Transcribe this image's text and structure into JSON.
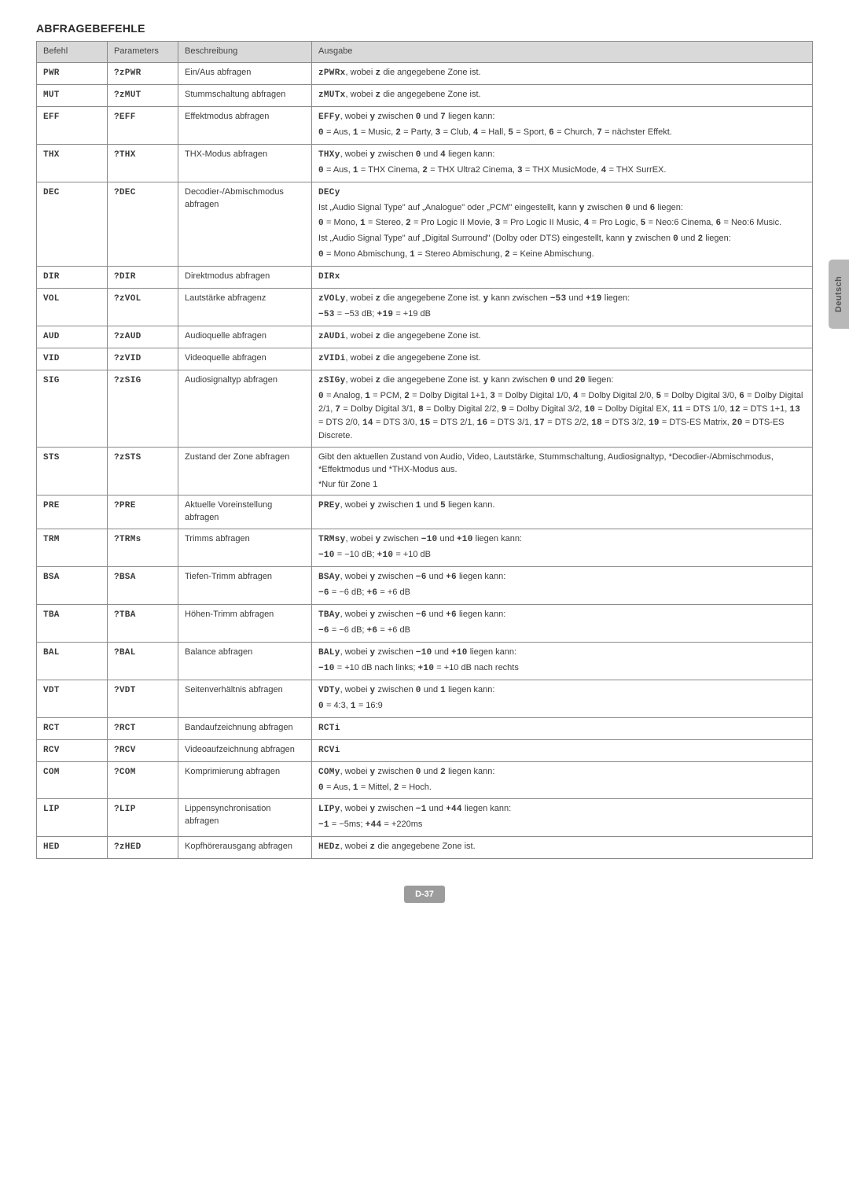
{
  "heading": "ABFRAGEBEFEHLE",
  "side_tab": "Deutsch",
  "page_number": "D-37",
  "columns": {
    "befehl": "Befehl",
    "parameters": "Parameters",
    "besch": "Beschreibung",
    "ausgabe": "Ausgabe"
  },
  "rows": [
    {
      "befehl": "PWR",
      "param": "?zPWR",
      "besch": "Ein/Aus abfragen",
      "ausgabe": [
        "<span class='mono'>zPWRx</span>, wobei <span class='mono'>z</span> die angegebene Zone ist."
      ]
    },
    {
      "befehl": "MUT",
      "param": "?zMUT",
      "besch": "Stummschaltung abfragen",
      "ausgabe": [
        "<span class='mono'>zMUTx</span>, wobei <span class='mono'>z</span> die angegebene Zone ist."
      ]
    },
    {
      "befehl": "EFF",
      "param": "?EFF",
      "besch": "Effektmodus abfragen",
      "ausgabe": [
        "<span class='mono'>EFFy</span>, wobei <span class='mono'>y</span> zwischen <span class='mono'>0</span> und <span class='mono'>7</span> liegen kann:",
        "<span class='mono'>0</span> = Aus, <span class='mono'>1</span> = Music, <span class='mono'>2</span> = Party, <span class='mono'>3</span> = Club, <span class='mono'>4</span> = Hall, <span class='mono'>5</span> = Sport, <span class='mono'>6</span> = Church, <span class='mono'>7</span> = nächster Effekt."
      ]
    },
    {
      "befehl": "THX",
      "param": "?THX",
      "besch": "THX-Modus abfragen",
      "ausgabe": [
        "<span class='mono'>THXy</span>, wobei <span class='mono'>y</span> zwischen <span class='mono'>0</span> und <span class='mono'>4</span> liegen kann:",
        "<span class='mono'>0</span> = Aus, <span class='mono'>1</span> = THX Cinema, <span class='mono'>2</span> = THX Ultra2 Cinema, <span class='mono'>3</span> = THX MusicMode, <span class='mono'>4</span> = THX SurrEX."
      ]
    },
    {
      "befehl": "DEC",
      "param": "?DEC",
      "besch": "Decodier-/Abmischmodus abfragen",
      "ausgabe": [
        "<span class='mono'>DECy</span>",
        "Ist „Audio Signal Type\" auf „Analogue\" oder „PCM\" eingestellt, kann <span class='mono'>y</span> zwischen <span class='mono'>0</span> und <span class='mono'>6</span> liegen:",
        "<span class='mono'>0</span> = Mono, <span class='mono'>1</span> = Stereo, <span class='mono'>2</span> = Pro Logic II Movie, <span class='mono'>3</span> = Pro Logic II Music, <span class='mono'>4</span> = Pro Logic, <span class='mono'>5</span> = Neo:6 Cinema, <span class='mono'>6</span> = Neo:6 Music.",
        "Ist „Audio Signal Type\" auf „Digital Surround\" (Dolby oder DTS) eingestellt, kann <span class='mono'>y</span> zwischen <span class='mono'>0</span> und <span class='mono'>2</span> liegen:",
        "<span class='mono'>0</span> = Mono Abmischung, <span class='mono'>1</span> = Stereo Abmischung, <span class='mono'>2</span> = Keine Abmischung."
      ]
    },
    {
      "befehl": "DIR",
      "param": "?DIR",
      "besch": "Direktmodus abfragen",
      "ausgabe": [
        "<span class='mono'>DIRx</span>"
      ]
    },
    {
      "befehl": "VOL",
      "param": "?zVOL",
      "besch": "Lautstärke abfragenz",
      "ausgabe": [
        "<span class='mono'>zVOLy</span>, wobei <span class='mono'>z</span> die angegebene Zone ist. <span class='mono'>y</span> kann zwischen <span class='mono'>−53</span> und <span class='mono'>+19</span> liegen:",
        "<span class='mono'>−53</span> = −53 dB; <span class='mono'>+19</span> = +19 dB"
      ]
    },
    {
      "befehl": "AUD",
      "param": "?zAUD",
      "besch": "Audioquelle abfragen",
      "ausgabe": [
        "<span class='mono'>zAUDi</span>, wobei <span class='mono'>z</span> die angegebene Zone ist."
      ]
    },
    {
      "befehl": "VID",
      "param": "?zVID",
      "besch": "Videoquelle abfragen",
      "ausgabe": [
        "<span class='mono'>zVIDi</span>, wobei <span class='mono'>z</span> die angegebene Zone ist."
      ]
    },
    {
      "befehl": "SIG",
      "param": "?zSIG",
      "besch": "Audiosignaltyp abfragen",
      "ausgabe": [
        "<span class='mono'>zSIGy</span>, wobei <span class='mono'>z</span> die angegebene Zone ist. <span class='mono'>y</span> kann zwischen <span class='mono'>0</span> und <span class='mono'>20</span> liegen:",
        "<span class='mono'>0</span> = Analog, <span class='mono'>1</span> = PCM, <span class='mono'>2</span> = Dolby Digital 1+1, <span class='mono'>3</span> = Dolby Digital 1/0, <span class='mono'>4</span> = Dolby Digital 2/0, <span class='mono'>5</span> = Dolby Digital 3/0, <span class='mono'>6</span> = Dolby Digital 2/1, <span class='mono'>7</span> = Dolby Digital 3/1, <span class='mono'>8</span> = Dolby Digital 2/2, <span class='mono'>9</span> = Dolby Digital 3/2, <span class='mono'>10</span> = Dolby Digital EX, <span class='mono'>11</span> = DTS 1/0, <span class='mono'>12</span> = DTS 1+1, <span class='mono'>13</span> = DTS 2/0, <span class='mono'>14</span> = DTS 3/0, <span class='mono'>15</span> = DTS 2/1, <span class='mono'>16</span> = DTS 3/1, <span class='mono'>17</span> = DTS 2/2, <span class='mono'>18</span> = DTS 3/2, <span class='mono'>19</span> = DTS-ES Matrix, <span class='mono'>20</span> = DTS-ES Discrete."
      ]
    },
    {
      "befehl": "STS",
      "param": "?zSTS",
      "besch": "Zustand der Zone abfragen",
      "ausgabe": [
        "Gibt den aktuellen Zustand von Audio, Video, Lautstärke, Stummschaltung, Audiosignaltyp, *Decodier-/Abmischmodus, *Effektmodus und *THX-Modus aus.",
        "*Nur für Zone 1"
      ]
    },
    {
      "befehl": "PRE",
      "param": "?PRE",
      "besch": "Aktuelle Voreinstellung abfragen",
      "ausgabe": [
        "<span class='mono'>PREy</span>, wobei <span class='mono'>y</span> zwischen <span class='mono'>1</span> und <span class='mono'>5</span> liegen kann."
      ]
    },
    {
      "befehl": "TRM",
      "param": "?TRMs",
      "besch": "Trimms abfragen",
      "ausgabe": [
        "<span class='mono'>TRMsy</span>, wobei <span class='mono'>y</span> zwischen <span class='mono'>−10</span> und <span class='mono'>+10</span> liegen kann:",
        "<span class='mono'>−10</span> = −10 dB; <span class='mono'>+10</span> = +10 dB"
      ]
    },
    {
      "befehl": "BSA",
      "param": "?BSA",
      "besch": "Tiefen-Trimm abfragen",
      "ausgabe": [
        "<span class='mono'>BSAy</span>, wobei <span class='mono'>y</span> zwischen <span class='mono'>−6</span> und <span class='mono'>+6</span> liegen kann:",
        "<span class='mono'>−6</span> = −6 dB; <span class='mono'>+6</span> = +6 dB"
      ]
    },
    {
      "befehl": "TBA",
      "param": "?TBA",
      "besch": "Höhen-Trimm abfragen",
      "ausgabe": [
        "<span class='mono'>TBAy</span>, wobei <span class='mono'>y</span> zwischen <span class='mono'>−6</span> und <span class='mono'>+6</span> liegen kann:",
        "<span class='mono'>−6</span> = −6 dB; <span class='mono'>+6</span> = +6 dB"
      ]
    },
    {
      "befehl": "BAL",
      "param": "?BAL",
      "besch": "Balance abfragen",
      "ausgabe": [
        "<span class='mono'>BALy</span>, wobei <span class='mono'>y</span> zwischen <span class='mono'>−10</span> und <span class='mono'>+10</span> liegen kann:",
        "<span class='mono'>−10</span> = +10 dB nach links; <span class='mono'>+10</span> = +10 dB nach rechts"
      ]
    },
    {
      "befehl": "VDT",
      "param": "?VDT",
      "besch": "Seitenverhältnis abfragen",
      "ausgabe": [
        "<span class='mono'>VDTy</span>, wobei <span class='mono'>y</span> zwischen <span class='mono'>0</span> und <span class='mono'>1</span> liegen kann:",
        "<span class='mono'>0</span> = 4:3, <span class='mono'>1</span> = 16:9"
      ]
    },
    {
      "befehl": "RCT",
      "param": "?RCT",
      "besch": "Bandaufzeichnung abfragen",
      "ausgabe": [
        "<span class='mono'>RCTi</span>"
      ]
    },
    {
      "befehl": "RCV",
      "param": "?RCV",
      "besch": "Videoaufzeichnung abfragen",
      "ausgabe": [
        "<span class='mono'>RCVi</span>"
      ]
    },
    {
      "befehl": "COM",
      "param": "?COM",
      "besch": "Komprimierung abfragen",
      "ausgabe": [
        "<span class='mono'>COMy</span>, wobei <span class='mono'>y</span> zwischen <span class='mono'>0</span> und <span class='mono'>2</span> liegen kann:",
        "<span class='mono'>0</span> = Aus, <span class='mono'>1</span> = Mittel, <span class='mono'>2</span> = Hoch."
      ]
    },
    {
      "befehl": "LIP",
      "param": "?LIP",
      "besch": "Lippensynchronisation abfragen",
      "ausgabe": [
        "<span class='mono'>LIPy</span>, wobei <span class='mono'>y</span> zwischen <span class='mono'>−1</span> und <span class='mono'>+44</span> liegen kann:",
        "<span class='mono'>−1</span> = −5ms; <span class='mono'>+44</span> = +220ms"
      ]
    },
    {
      "befehl": "HED",
      "param": "?zHED",
      "besch": "Kopfhörerausgang abfragen",
      "ausgabe": [
        "<span class='mono'>HEDz</span>, wobei <span class='mono'>z</span> die angegebene Zone ist."
      ]
    }
  ]
}
